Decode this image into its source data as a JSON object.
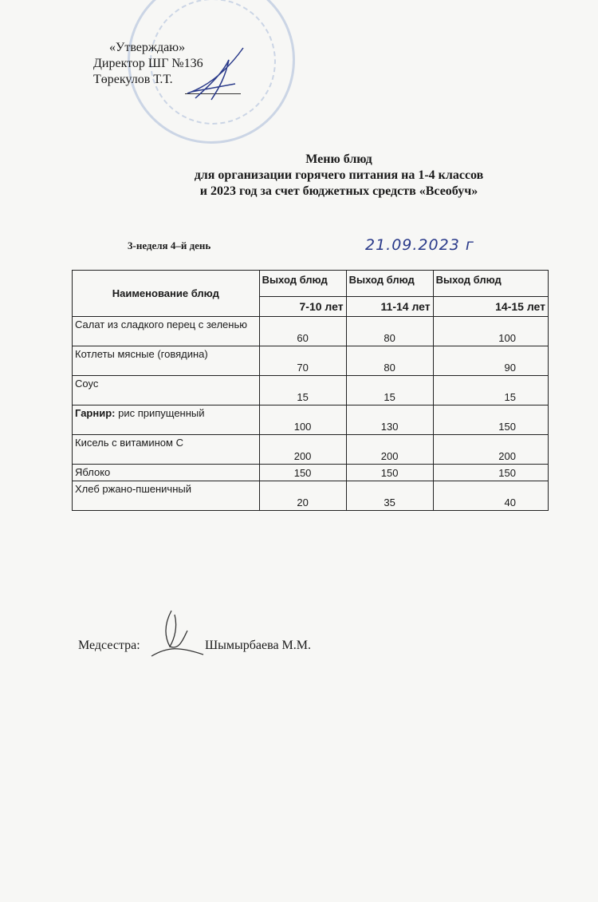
{
  "approval": {
    "line1": "«Утверждаю»",
    "line2": "Директор ШГ №136",
    "line3": "Төрекулов Т.Т."
  },
  "title": {
    "line1": "Меню блюд",
    "line2": "для организации  горячего питания на 1-4 классов",
    "line3": "и 2023 год за счет  бюджетных  средств «Всеобуч»"
  },
  "week_day": "3-неделя 4–й день",
  "date": "21.09.2023 г",
  "table": {
    "header_name": "Наименование блюд",
    "header_cols": [
      "Выход блюд",
      "Выход блюд",
      "Выход блюд"
    ],
    "ages": [
      "7-10 лет",
      "11-14 лет",
      "14-15 лет"
    ],
    "rows": [
      {
        "prefix": "",
        "dish": "Салат из сладкого перец с зеленью",
        "values": [
          "60",
          "80",
          "100"
        ]
      },
      {
        "prefix": "",
        "dish": "Котлеты мясные (говядина)",
        "values": [
          "70",
          "80",
          "90"
        ]
      },
      {
        "prefix": "",
        "dish": "Соус",
        "values": [
          "15",
          "15",
          "15"
        ]
      },
      {
        "prefix": "Гарнир:",
        "dish": " рис припущенный",
        "values": [
          "100",
          "130",
          "150"
        ]
      },
      {
        "prefix": "",
        "dish": "Кисель с витамином С",
        "values": [
          "200",
          "200",
          "200"
        ]
      },
      {
        "prefix": "",
        "dish": "Яблоко",
        "values": [
          "150",
          "150",
          "150"
        ]
      },
      {
        "prefix": "",
        "dish": "Хлеб  ржано-пшеничный",
        "values": [
          "20",
          "35",
          "40"
        ]
      }
    ]
  },
  "nurse": {
    "label": "Медсестра:",
    "name": "Шымырбаева М.М."
  }
}
